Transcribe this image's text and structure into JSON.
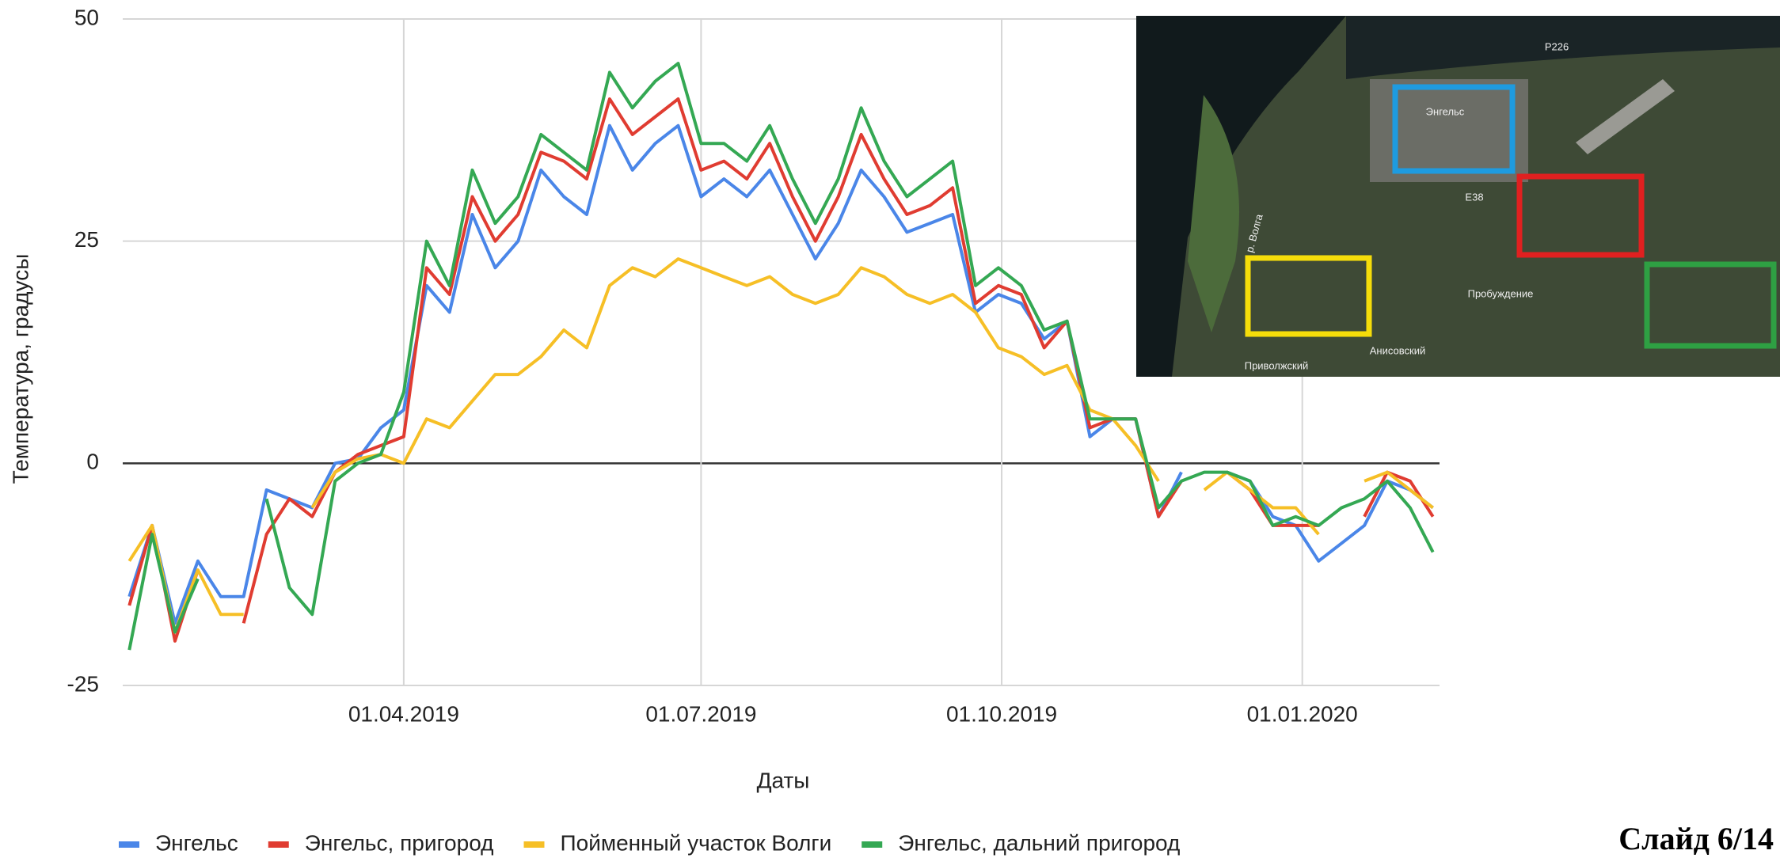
{
  "chart_data": {
    "type": "line",
    "x_label": "Даты",
    "y_label": "Температура, градусы",
    "x": [
      "07.01.2019",
      "14.01.2019",
      "21.01.2019",
      "28.01.2019",
      "04.02.2019",
      "11.02.2019",
      "18.02.2019",
      "25.02.2019",
      "04.03.2019",
      "11.03.2019",
      "18.03.2019",
      "25.03.2019",
      "01.04.2019",
      "08.04.2019",
      "15.04.2019",
      "22.04.2019",
      "29.04.2019",
      "06.05.2019",
      "13.05.2019",
      "20.05.2019",
      "27.05.2019",
      "03.06.2019",
      "10.06.2019",
      "17.06.2019",
      "24.06.2019",
      "01.07.2019",
      "08.07.2019",
      "15.07.2019",
      "22.07.2019",
      "29.07.2019",
      "05.08.2019",
      "12.08.2019",
      "19.08.2019",
      "26.08.2019",
      "02.09.2019",
      "09.09.2019",
      "16.09.2019",
      "23.09.2019",
      "30.09.2019",
      "07.10.2019",
      "14.10.2019",
      "21.10.2019",
      "28.10.2019",
      "04.11.2019",
      "11.11.2019",
      "18.11.2019",
      "25.11.2019",
      "02.12.2019",
      "09.12.2019",
      "16.12.2019",
      "23.12.2019",
      "30.12.2019",
      "06.01.2020",
      "13.01.2020",
      "20.01.2020",
      "27.01.2020",
      "03.02.2020",
      "10.02.2020"
    ],
    "series": [
      {
        "name": "Энгельс",
        "color": "#4a86e8",
        "values": [
          -15,
          -7,
          -18,
          -11,
          -15,
          -15,
          -3,
          -4,
          -5,
          0,
          0.5,
          4,
          6,
          20,
          17,
          28,
          22,
          25,
          33,
          30,
          28,
          38,
          33,
          36,
          38,
          30,
          32,
          30,
          33,
          28,
          23,
          27,
          33,
          30,
          26,
          27,
          28,
          17,
          19,
          18,
          14,
          16,
          3,
          5,
          5,
          -6,
          -1,
          null,
          -1,
          -2,
          -6,
          -7,
          -11,
          -9,
          -7,
          -2,
          -3,
          -5
        ]
      },
      {
        "name": "Энгельс, пригород",
        "color": "#e03c31",
        "values": [
          -16,
          -7,
          -20,
          -12,
          null,
          -18,
          -8,
          -4,
          -6,
          -1,
          1,
          2,
          3,
          22,
          19,
          30,
          25,
          28,
          35,
          34,
          32,
          41,
          37,
          39,
          41,
          33,
          34,
          32,
          36,
          30,
          25,
          30,
          37,
          32,
          28,
          29,
          31,
          18,
          20,
          19,
          13,
          16,
          4,
          5,
          5,
          -6,
          -2,
          null,
          -1,
          -3,
          -7,
          -7,
          -7,
          null,
          -6,
          -1,
          -2,
          -6
        ]
      },
      {
        "name": "Пойменный участок Волги",
        "color": "#f6bf26",
        "values": [
          -11,
          -7,
          -19,
          -12,
          -17,
          -17,
          null,
          null,
          -5,
          -1,
          0.5,
          1,
          0,
          5,
          4,
          7,
          10,
          10,
          12,
          15,
          13,
          20,
          22,
          21,
          23,
          22,
          21,
          20,
          21,
          19,
          18,
          19,
          22,
          21,
          19,
          18,
          19,
          17,
          13,
          12,
          10,
          11,
          6,
          5,
          2,
          -2,
          null,
          -3,
          -1,
          -3,
          -5,
          -5,
          -8,
          null,
          -2,
          -1,
          -3,
          -5
        ]
      },
      {
        "name": "Энгельс, дальний пригород",
        "color": "#34a853",
        "values": [
          -21,
          -8,
          -19,
          -13,
          null,
          null,
          -4,
          -14,
          -17,
          -2,
          0,
          1,
          8,
          25,
          20,
          33,
          27,
          30,
          37,
          35,
          33,
          44,
          40,
          43,
          45,
          36,
          36,
          34,
          38,
          32,
          27,
          32,
          40,
          34,
          30,
          32,
          34,
          20,
          22,
          20,
          15,
          16,
          5,
          5,
          5,
          -5,
          -2,
          -1,
          -1,
          -2,
          -7,
          -6,
          -7,
          -5,
          -4,
          -2,
          -5,
          -10
        ]
      }
    ],
    "xlim": [
      "05.01.2019",
      "12.02.2020"
    ],
    "xticks": [
      "01.04.2019",
      "01.07.2019",
      "01.10.2019",
      "01.01.2020"
    ],
    "ylim": [
      -25,
      50
    ],
    "yticks": [
      -25,
      0,
      25,
      50
    ],
    "grid": true,
    "legend": "bottom"
  },
  "map": {
    "labels": [
      "Энгельс",
      "Пробуждение",
      "Анисовский",
      "Приволжский",
      "р. Волга",
      "Р226",
      "E38"
    ]
  },
  "slide": "Слайд 6/14"
}
